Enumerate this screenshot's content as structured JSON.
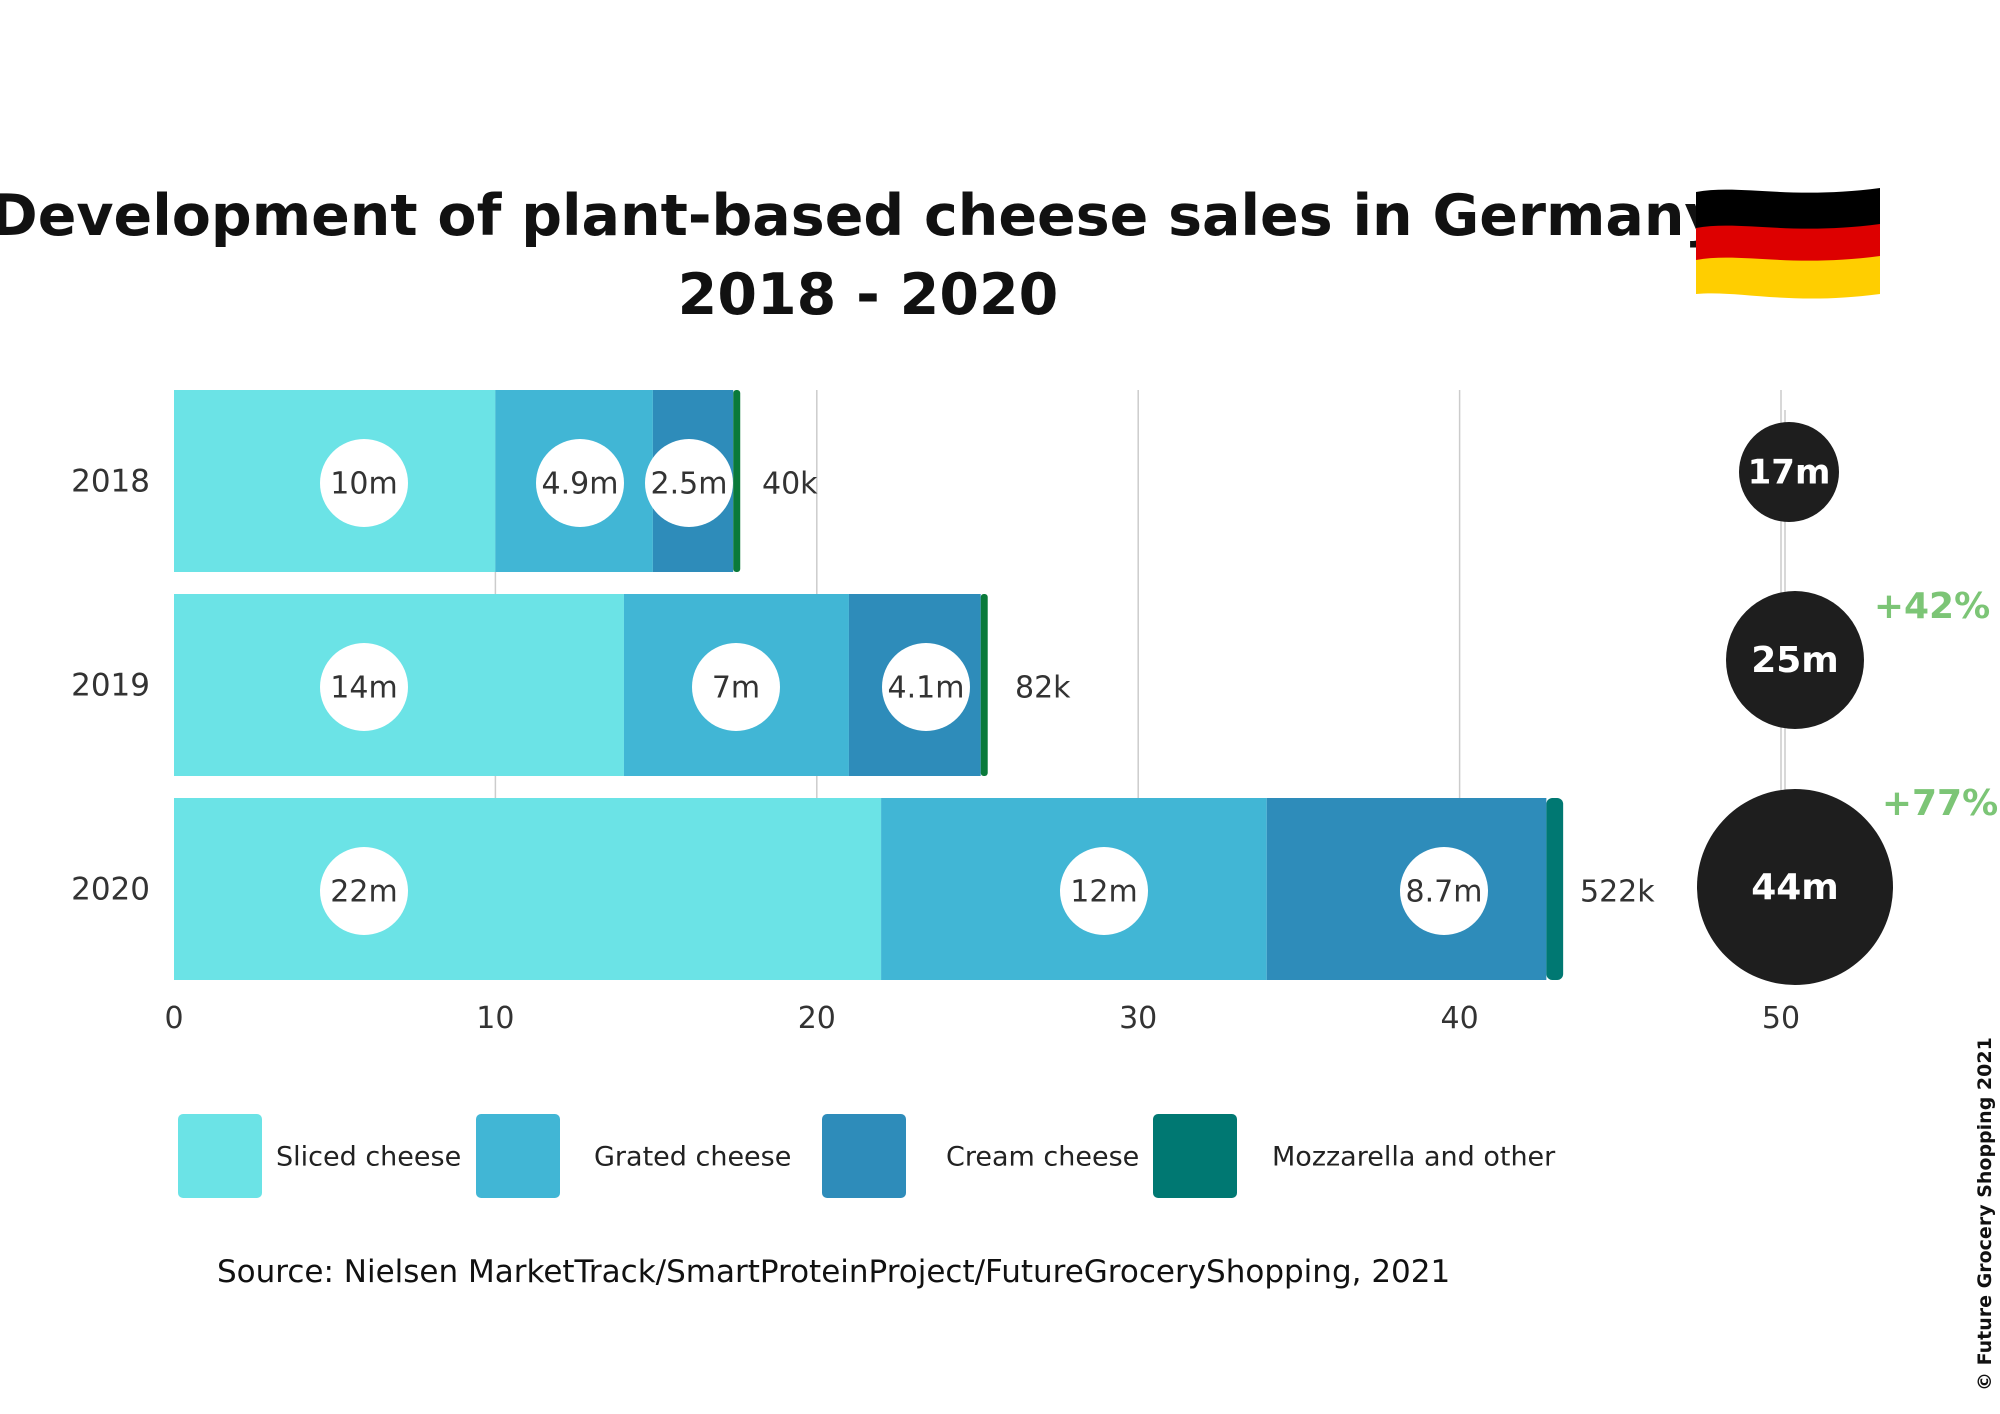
{
  "chart_data": {
    "type": "bar",
    "orientation": "horizontal",
    "stacked": true,
    "title_line1": "Development of plant-based cheese sales in Germany",
    "title_line2": "2018 - 2020",
    "categories": [
      "2018",
      "2019",
      "2020"
    ],
    "series": [
      {
        "name": "Sliced cheese",
        "color": "#6be3e6",
        "values": [
          10,
          14,
          22
        ],
        "labels": [
          "10m",
          "14m",
          "22m"
        ]
      },
      {
        "name": "Grated cheese",
        "color": "#41b6d5",
        "values": [
          4.9,
          7,
          12
        ],
        "labels": [
          "4.9m",
          "7m",
          "12m"
        ]
      },
      {
        "name": "Cream cheese",
        "color": "#2e8cba",
        "values": [
          2.5,
          4.1,
          8.7
        ],
        "labels": [
          "2.5m",
          "4.1m",
          "8.7m"
        ]
      },
      {
        "name": "Mozzarella and other",
        "color": "#007872",
        "values": [
          0.04,
          0.082,
          0.522
        ],
        "labels": [
          "40k",
          "82k",
          "522k"
        ]
      }
    ],
    "totals": [
      {
        "label": "17m",
        "value": 17
      },
      {
        "label": "25m",
        "value": 25
      },
      {
        "label": "44m",
        "value": 44
      }
    ],
    "growth": [
      "+42%",
      "+77%"
    ],
    "xlim": [
      0,
      50
    ],
    "xticks": [
      "0",
      "10",
      "20",
      "30",
      "40",
      "50"
    ],
    "grid": true,
    "legend_position": "bottom"
  },
  "source": "Source: Nielsen MarketTrack/SmartProteinProject/FutureGroceryShopping, 2021",
  "copyright": "© Future Grocery Shopping 2021",
  "flag_colors": [
    "#000000",
    "#dd0000",
    "#ffce00"
  ]
}
